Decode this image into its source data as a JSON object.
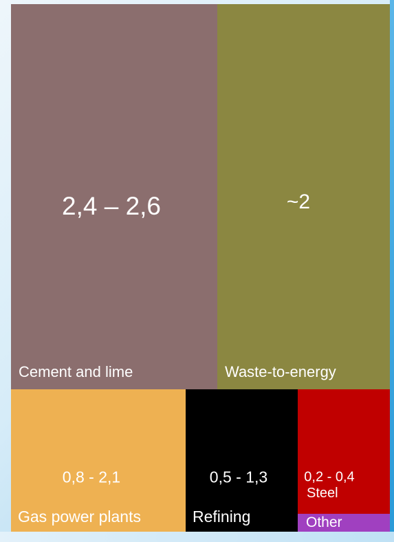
{
  "chart_data": {
    "type": "treemap",
    "title": "",
    "tiles": [
      {
        "label": "Cement and lime",
        "value_text": "2,4 – 2,6",
        "value_min": 2.4,
        "value_max": 2.6,
        "color": "#8b6e6e"
      },
      {
        "label": "Waste-to-energy",
        "value_text": "~2",
        "value_min": 2.0,
        "value_max": 2.0,
        "color": "#8b8741"
      },
      {
        "label": "Gas power plants",
        "value_text": "0,8 - 2,1",
        "value_min": 0.8,
        "value_max": 2.1,
        "color": "#eeb152"
      },
      {
        "label": "Refining",
        "value_text": "0,5 - 1,3",
        "value_min": 0.5,
        "value_max": 1.3,
        "color": "#000000"
      },
      {
        "label": "Steel",
        "value_text": "0,2 - 0,4",
        "value_min": 0.2,
        "value_max": 0.4,
        "color": "#c00000"
      },
      {
        "label": "Other",
        "value_text": "",
        "color": "#a040c0"
      }
    ]
  }
}
